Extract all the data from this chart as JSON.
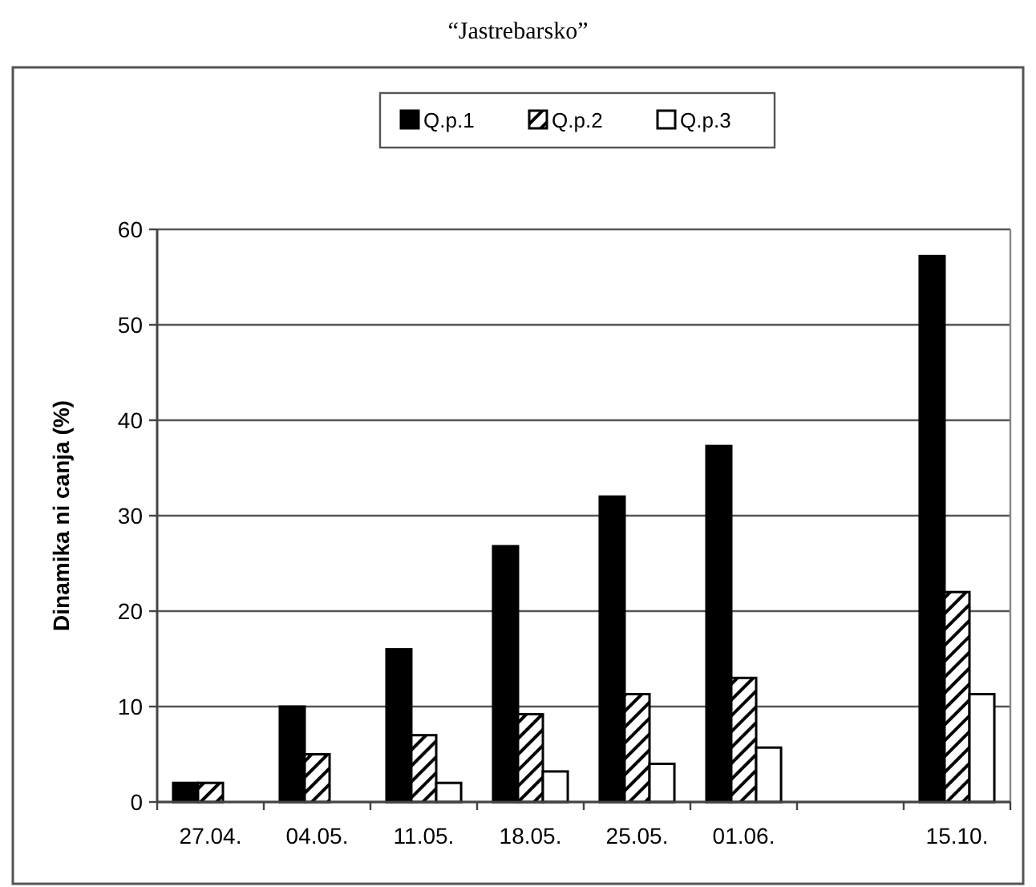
{
  "chart_data": {
    "type": "bar",
    "title": "“Jastrebarsko”",
    "ylabel": "Dinamika ni canja (%)",
    "categories": [
      "27.04.",
      "04.05.",
      "11.05.",
      "18.05.",
      "25.05.",
      "01.06.",
      null,
      "15.10."
    ],
    "series": [
      {
        "name": "Q.p.1",
        "color": "#000000",
        "values": [
          2,
          10,
          16,
          26.8,
          32,
          37.3,
          null,
          57.2
        ]
      },
      {
        "name": "Q.p.2",
        "color": "#000000",
        "values": [
          2,
          5,
          7,
          9.2,
          11.3,
          13,
          null,
          22
        ]
      },
      {
        "name": "Q.p.3",
        "color": "#ffffff",
        "values": [
          null,
          null,
          2,
          3.2,
          4,
          5.7,
          null,
          11.3
        ]
      }
    ],
    "ylim": [
      0,
      60
    ],
    "yticks": [
      0,
      10,
      20,
      30,
      40,
      50,
      60
    ],
    "grid": "y",
    "legend": "top"
  }
}
